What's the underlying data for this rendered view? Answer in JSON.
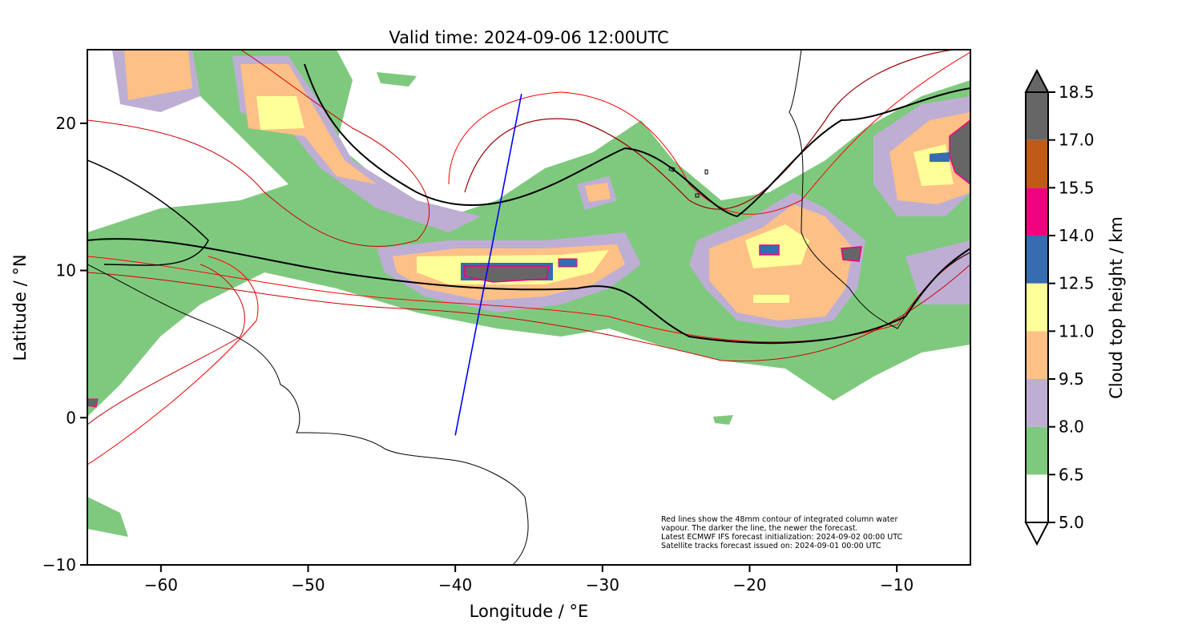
{
  "title": "Valid time: 2024-09-06 12:00UTC",
  "x_axis": {
    "label": "Longitude / °E",
    "ticks": [
      "−60",
      "−50",
      "−40",
      "−30",
      "−20",
      "−10"
    ],
    "tick_values": [
      -60,
      -50,
      -40,
      -30,
      -20,
      -10
    ],
    "range": [
      -65,
      -5
    ]
  },
  "y_axis": {
    "label": "Latitude / °N",
    "ticks": [
      "20",
      "10",
      "0",
      "−10"
    ],
    "tick_values": [
      20,
      10,
      0,
      -10
    ],
    "range": [
      -10,
      25
    ]
  },
  "colorbar": {
    "label": "Cloud top height / km",
    "ticks": [
      "18.5",
      "17.0",
      "15.5",
      "14.0",
      "12.5",
      "11.0",
      "9.5",
      "8.0",
      "6.5",
      "5.0"
    ],
    "levels": [
      5.0,
      6.5,
      8.0,
      9.5,
      11.0,
      12.5,
      14.0,
      15.5,
      17.0,
      18.5
    ],
    "colors": [
      "#ffffff",
      "#7fc97f",
      "#beaed4",
      "#fdc086",
      "#ffff99",
      "#386cb0",
      "#f0027f",
      "#bf5b17",
      "#666666"
    ],
    "extend": "both"
  },
  "annotation": [
    "Red lines show the 48mm contour of integrated column water",
    "vapour. The darker the line, the newer the forecast.",
    "Latest ECMWF IFS forecast initialization: 2024-09-02 00:00 UTC",
    "Satellite tracks forecast issued on: 2024-09-01 00:00 UTC"
  ],
  "satellite_track": {
    "color": "#0000ff",
    "start": {
      "lon": -40.0,
      "lat": -1.2
    },
    "end": {
      "lon": -35.5,
      "lat": 22.0
    }
  }
}
